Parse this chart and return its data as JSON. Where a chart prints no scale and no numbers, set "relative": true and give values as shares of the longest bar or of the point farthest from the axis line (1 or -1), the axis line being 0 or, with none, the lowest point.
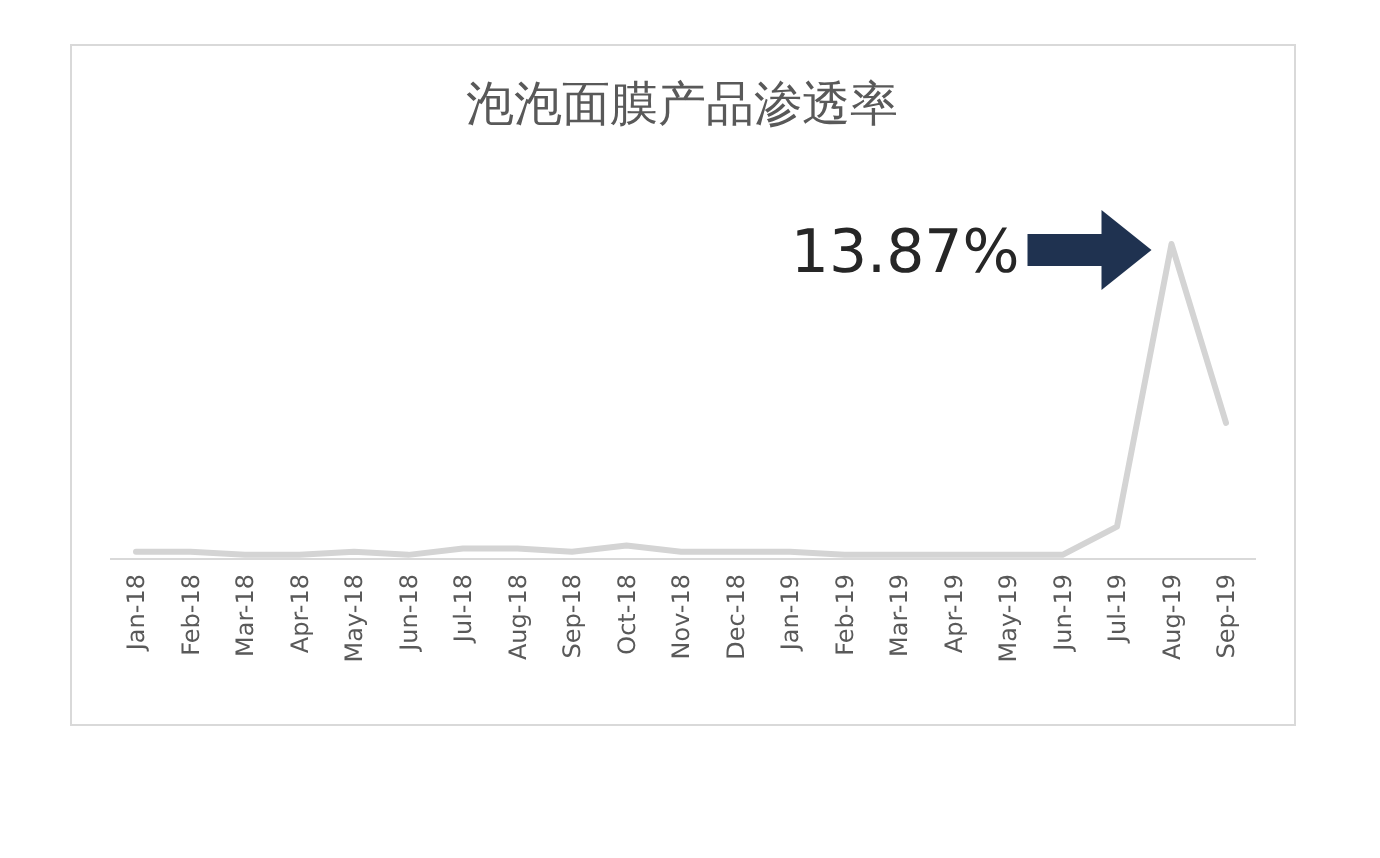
{
  "chart_data": {
    "type": "line",
    "title": "泡泡面膜产品渗透率",
    "relative": true,
    "color": "#d4d4d4",
    "categories": [
      "Jan-18",
      "Feb-18",
      "Mar-18",
      "Apr-18",
      "May-18",
      "Jun-18",
      "Jul-18",
      "Aug-18",
      "Sep-18",
      "Oct-18",
      "Nov-18",
      "Dec-18",
      "Jan-19",
      "Feb-19",
      "Mar-19",
      "Apr-19",
      "May-19",
      "Jun-19",
      "Jul-19",
      "Aug-19",
      "Sep-19"
    ],
    "values": [
      0.02,
      0.02,
      0.01,
      0.01,
      0.02,
      0.01,
      0.03,
      0.03,
      0.02,
      0.04,
      0.02,
      0.02,
      0.02,
      0.01,
      0.01,
      0.01,
      0.01,
      0.01,
      0.1,
      1,
      0.43
    ],
    "annotations": [
      {
        "text": "13.87%",
        "x": "Aug-19",
        "y": 1
      }
    ]
  }
}
